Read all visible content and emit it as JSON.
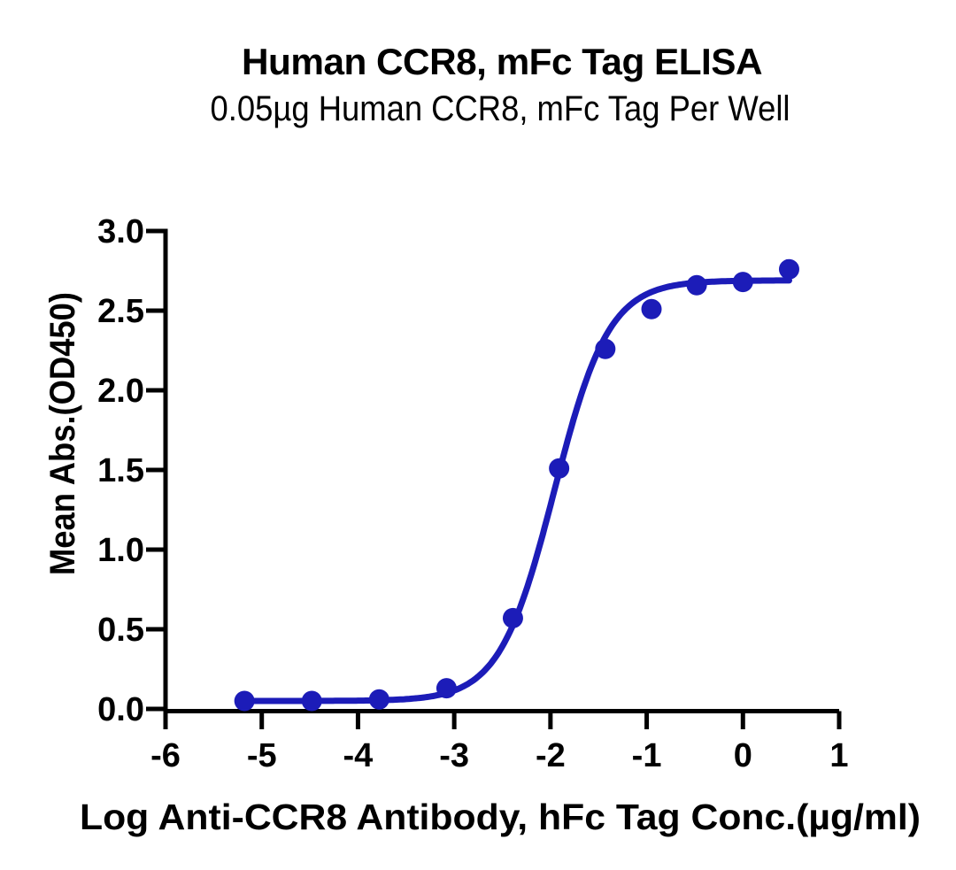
{
  "figure": {
    "background": "#ffffff",
    "accent_color": "#1c1cb8",
    "axis_color": "#000000"
  },
  "chart_data": {
    "type": "scatter",
    "title": "Human CCR8, mFc Tag ELISA",
    "subtitle": "0.05µg Human CCR8, mFc Tag Per Well",
    "xlabel": "Log Anti-CCR8 Antibody, hFc Tag Conc.(µg/ml)",
    "ylabel": "Mean Abs.(OD450)",
    "xlim": [
      -6,
      1
    ],
    "ylim": [
      0,
      3
    ],
    "x_ticks": [
      -6,
      -5,
      -4,
      -3,
      -2,
      -1,
      0,
      1
    ],
    "x_tick_labels": [
      "-6",
      "-5",
      "-4",
      "-3",
      "-2",
      "-1",
      "0",
      "1"
    ],
    "y_ticks": [
      0,
      0.5,
      1,
      1.5,
      2,
      2.5,
      3
    ],
    "y_tick_labels": [
      "0.0",
      "0.5",
      "1.0",
      "1.5",
      "2.0",
      "2.5",
      "3.0"
    ],
    "grid": false,
    "legend": "none",
    "series": [
      {
        "color": "#1c1cb8",
        "marker": "circle",
        "x": [
          -5.18,
          -4.48,
          -3.78,
          -3.08,
          -2.39,
          -1.91,
          -1.43,
          -0.95,
          -0.48,
          0.0,
          0.48
        ],
        "y": [
          0.05,
          0.05,
          0.06,
          0.13,
          0.57,
          1.51,
          2.26,
          2.51,
          2.66,
          2.68,
          2.76
        ]
      }
    ],
    "fit_curve": {
      "model": "4PL",
      "bottom": 0.05,
      "top": 2.69,
      "log_ec50": -1.96,
      "hill_slope": 1.53,
      "x_range": [
        -5.18,
        0.48
      ],
      "color": "#1c1cb8"
    }
  }
}
